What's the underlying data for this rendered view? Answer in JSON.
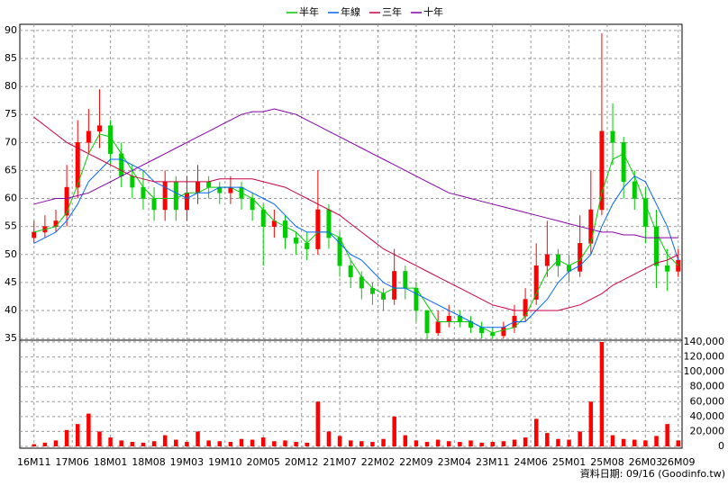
{
  "chart_data": {
    "type": "candlestick",
    "x": [
      0,
      2,
      4,
      6,
      8,
      10,
      12,
      14,
      16,
      18,
      20,
      22,
      24,
      26,
      28,
      30,
      32,
      34,
      36,
      38,
      40,
      42,
      44,
      46,
      48,
      50,
      52,
      54,
      56,
      58,
      60,
      62,
      64,
      66,
      68,
      70,
      72,
      74,
      76,
      78,
      80,
      82,
      84,
      86,
      88,
      90,
      92,
      94,
      96,
      98,
      100,
      102,
      104,
      106,
      108,
      110,
      112,
      114,
      116,
      118
    ],
    "open": [
      53,
      54,
      55,
      57,
      62,
      70,
      72,
      73,
      68,
      64,
      62,
      60,
      58,
      63,
      58,
      61,
      63,
      62,
      61,
      62,
      60,
      58,
      55,
      56,
      53,
      52,
      51,
      58,
      53,
      48,
      46,
      44,
      43,
      42,
      47,
      44,
      40,
      36,
      38,
      39,
      38,
      37,
      36,
      35.5,
      37,
      39,
      42,
      48,
      50,
      48,
      47,
      52,
      58,
      72,
      70,
      63,
      60,
      55,
      48,
      47
    ],
    "high": [
      56,
      57,
      58,
      66,
      74,
      76,
      79.5,
      74,
      70,
      66,
      65,
      62,
      65,
      64,
      64,
      66,
      64,
      63,
      64,
      63,
      61,
      59,
      58,
      57,
      54,
      54,
      65,
      59,
      54,
      49,
      47,
      45,
      44,
      51,
      48,
      45,
      40,
      40,
      41,
      40,
      39,
      38,
      37,
      38,
      41,
      44,
      52,
      56,
      51,
      50,
      57,
      65,
      89.5,
      77,
      71,
      65,
      62,
      58,
      51,
      51
    ],
    "low": [
      52,
      53,
      54,
      55,
      60,
      68,
      69,
      66,
      62,
      60,
      58,
      56,
      56,
      56,
      56,
      59,
      60,
      59,
      59,
      58,
      56,
      48,
      53,
      51,
      50,
      49,
      50,
      51,
      46,
      44,
      42,
      41,
      40,
      41,
      42,
      38,
      35,
      35.5,
      37,
      37,
      36,
      35,
      35,
      35,
      36,
      38,
      41,
      46,
      46,
      45,
      46,
      50,
      57,
      66,
      60,
      58,
      52,
      44,
      43.5,
      46
    ],
    "close": [
      54,
      55,
      56,
      62,
      70,
      72,
      73,
      68,
      64,
      62,
      60,
      58,
      63,
      58,
      61,
      63,
      62,
      61,
      62,
      60,
      58,
      55,
      56,
      53,
      52,
      51,
      58,
      53,
      48,
      46,
      44,
      43,
      42,
      47,
      44,
      40,
      36,
      38,
      39,
      38,
      37,
      36,
      35.5,
      37,
      39,
      42,
      48,
      50,
      48,
      47,
      52,
      58,
      72,
      70,
      63,
      60,
      55,
      48,
      47,
      49
    ],
    "volume": [
      3000,
      5000,
      8000,
      22000,
      30000,
      44000,
      20000,
      12000,
      8000,
      6000,
      5000,
      7000,
      15000,
      9000,
      6000,
      20000,
      8000,
      7000,
      6000,
      10000,
      9000,
      12000,
      7000,
      8000,
      6000,
      5000,
      60000,
      20000,
      14000,
      8000,
      7000,
      6000,
      10000,
      40000,
      15000,
      8000,
      6000,
      9000,
      7000,
      6000,
      8000,
      5000,
      6000,
      7000,
      9000,
      12000,
      37000,
      18000,
      10000,
      9000,
      20000,
      60000,
      140000,
      15000,
      10000,
      9000,
      8000,
      14000,
      30000,
      8000
    ],
    "up_color": "#ff0000",
    "down_color": "#00cc00",
    "volume_color": "#ff0000",
    "series": [
      {
        "name": "半年",
        "color": "#00cc00",
        "values": [
          54,
          54.5,
          55,
          57.5,
          62.5,
          68,
          71.5,
          71,
          68,
          65,
          62,
          60,
          60,
          60,
          61,
          61,
          62,
          62,
          62,
          61,
          60,
          58,
          56,
          55,
          54,
          52,
          54,
          54,
          53,
          49,
          46,
          44,
          43,
          44,
          44,
          44,
          41,
          38,
          38,
          38,
          38,
          37,
          36,
          36.5,
          37,
          39,
          43,
          47,
          49,
          48,
          49,
          52,
          61,
          67,
          68,
          64,
          59,
          54,
          50,
          48
        ]
      },
      {
        "name": "年線",
        "color": "#0066ff",
        "values": [
          52,
          53,
          54,
          56,
          59,
          63,
          65,
          67,
          67,
          66,
          65,
          63,
          62,
          61,
          60,
          61,
          61,
          62,
          62,
          62,
          61,
          60,
          59,
          57,
          55,
          54,
          54,
          54,
          52,
          50,
          49,
          47,
          45,
          44,
          44,
          43,
          42,
          41,
          40,
          39,
          38,
          37,
          37,
          37,
          38,
          38,
          40,
          42,
          45,
          47,
          48,
          50,
          55,
          59,
          62,
          64,
          63,
          59,
          55,
          49
        ]
      },
      {
        "name": "三年",
        "color": "#cc0044",
        "values": [
          74.5,
          73,
          71.5,
          70,
          69,
          68,
          67,
          66,
          65,
          64,
          63.5,
          63,
          63,
          63,
          63,
          63,
          63,
          63.5,
          63.5,
          63.5,
          63.5,
          63,
          62.5,
          62,
          61,
          60,
          59,
          58,
          57,
          55.5,
          54,
          52.5,
          51,
          50,
          49,
          48,
          47,
          46,
          45,
          44,
          43,
          42,
          41,
          40.5,
          40,
          40,
          40,
          40,
          40,
          40.5,
          41,
          42,
          43,
          44.5,
          45.5,
          46.5,
          47.5,
          48.5,
          49,
          50
        ]
      },
      {
        "name": "十年",
        "color": "#8800aa",
        "values": [
          59,
          59.5,
          60,
          60,
          60.5,
          61,
          62,
          63,
          64,
          65,
          66,
          67,
          68,
          69,
          70,
          71,
          72,
          73,
          74,
          75,
          75.5,
          75.5,
          76,
          75.5,
          75,
          74,
          73,
          72,
          71,
          70,
          69,
          68,
          67,
          66,
          65,
          64,
          63,
          62,
          61,
          60.5,
          60,
          59.5,
          59,
          58.5,
          58,
          57.5,
          57,
          56.5,
          56,
          55.5,
          55,
          54.5,
          54,
          54,
          53.5,
          53.5,
          53,
          53,
          53,
          53
        ]
      }
    ],
    "xlim": [
      -2.6,
      118.7
    ],
    "xticks": [
      {
        "value": 0,
        "label": "16M11"
      },
      {
        "value": 7,
        "label": "17M06"
      },
      {
        "value": 14,
        "label": "18M01"
      },
      {
        "value": 21,
        "label": "18M08"
      },
      {
        "value": 28,
        "label": "19M03"
      },
      {
        "value": 35,
        "label": "19M10"
      },
      {
        "value": 42,
        "label": "20M05"
      },
      {
        "value": 49,
        "label": "20M12"
      },
      {
        "value": 56,
        "label": "21M07"
      },
      {
        "value": 63,
        "label": "22M02"
      },
      {
        "value": 70,
        "label": "22M09"
      },
      {
        "value": 77,
        "label": "23M04"
      },
      {
        "value": 84,
        "label": "23M11"
      },
      {
        "value": 91,
        "label": "24M06"
      },
      {
        "value": 98,
        "label": "25M01"
      },
      {
        "value": 105,
        "label": "25M08"
      },
      {
        "value": 112,
        "label": "26M03"
      },
      {
        "value": 118,
        "label": "26M09"
      }
    ],
    "ylim": [
      34.7,
      91.1
    ],
    "yticks": [
      35,
      40,
      45,
      50,
      55,
      60,
      65,
      70,
      75,
      80,
      85,
      90
    ],
    "y2lim": [
      -2400,
      142400
    ],
    "y2ticks": [
      0,
      {
        "value": 20000,
        "label": "20,000"
      },
      {
        "value": 40000,
        "label": "40,000"
      },
      {
        "value": 60000,
        "label": "60,000"
      },
      {
        "value": 80000,
        "label": "80,000"
      },
      {
        "value": 100000,
        "label": "100,000"
      },
      {
        "value": 120000,
        "label": "120,000"
      },
      {
        "value": 140000,
        "label": "140,000"
      }
    ],
    "grid": true,
    "footer": "資料日期: 09/16 (Goodinfo.tw)"
  }
}
